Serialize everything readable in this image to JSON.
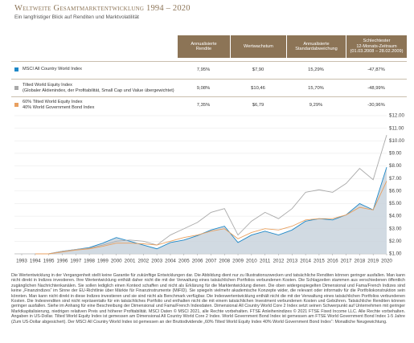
{
  "header": {
    "title": "Weltweite Gesamtmarktentwicklung 1994 – 2020",
    "subtitle": "Ein langfristiger Blick auf Renditen und Marktvolatilität"
  },
  "table": {
    "columns": [
      [
        "Annualisierte",
        "Rendite"
      ],
      [
        "Wertwachstum"
      ],
      [
        "Annualisierte",
        "Standardabweichung"
      ],
      [
        "Schlechtester",
        "12-Monats-Zeitraum",
        "(01.03.2008 – 28.02.2009)"
      ]
    ],
    "rows": [
      {
        "label": [
          "MSCI All Country World Index"
        ],
        "cells": [
          "7,95%",
          "$7,90",
          "15,29%",
          "-47,87%"
        ]
      },
      {
        "label": [
          "Tilted World Equity Index",
          "(Globaler Aktienindex, der Profitabilität, Small Cap und Value übergewichtet)"
        ],
        "cells": [
          "9,08%",
          "$10,46",
          "15,70%",
          "-48,99%"
        ]
      },
      {
        "label": [
          "60% Tilted World Equity Index",
          "40% World Government Bond Index"
        ],
        "cells": [
          "7,35%",
          "$6,79",
          "9,29%",
          "-30,96%"
        ]
      }
    ]
  },
  "chart_data": {
    "type": "line",
    "x": [
      1994,
      1995,
      1996,
      1997,
      1998,
      1999,
      2000,
      2001,
      2002,
      2003,
      2004,
      2005,
      2006,
      2007,
      2008,
      2009,
      2010,
      2011,
      2012,
      2013,
      2014,
      2015,
      2016,
      2017,
      2018,
      2019,
      2020
    ],
    "series": [
      {
        "color": "#1e88c8",
        "area_color": "#c9d4dd",
        "values": [
          1.0,
          1.0,
          1.2,
          1.35,
          1.5,
          1.85,
          2.3,
          2.0,
          1.7,
          1.4,
          1.9,
          2.1,
          2.45,
          2.9,
          3.2,
          1.9,
          2.5,
          2.8,
          2.5,
          2.9,
          3.6,
          3.8,
          3.7,
          4.1,
          5.0,
          4.5,
          7.9
        ]
      },
      {
        "color": "#a9a9a9",
        "values": [
          1.0,
          1.0,
          1.2,
          1.35,
          1.45,
          1.7,
          2.0,
          2.1,
          2.0,
          1.7,
          2.5,
          3.0,
          3.5,
          4.3,
          4.6,
          2.5,
          3.6,
          4.3,
          3.8,
          4.6,
          5.9,
          6.1,
          5.9,
          6.6,
          7.8,
          6.9,
          10.46
        ]
      },
      {
        "color": "#e8a060",
        "values": [
          1.0,
          1.0,
          1.15,
          1.3,
          1.4,
          1.6,
          1.85,
          1.85,
          1.8,
          1.7,
          2.0,
          2.3,
          2.5,
          2.8,
          3.0,
          2.2,
          2.7,
          3.0,
          2.9,
          3.2,
          3.7,
          3.8,
          3.8,
          4.1,
          4.7,
          4.5,
          6.79
        ]
      }
    ],
    "xlim": [
      1993,
      2020
    ],
    "xticks": [
      1993,
      1994,
      1995,
      1996,
      1997,
      1998,
      1999,
      2000,
      2001,
      2002,
      2003,
      2004,
      2005,
      2006,
      2007,
      2008,
      2009,
      2010,
      2011,
      2012,
      2013,
      2014,
      2015,
      2016,
      2017,
      2018,
      2019,
      2020
    ],
    "ylim": [
      1,
      12
    ],
    "yticks": [
      {
        "value": 1,
        "label": "$1.00"
      },
      {
        "value": 2,
        "label": "$2.00"
      },
      {
        "value": 3,
        "label": "$3.00"
      },
      {
        "value": 4,
        "label": "$4.00"
      },
      {
        "value": 5,
        "label": "$5.00"
      },
      {
        "value": 6,
        "label": "$6.00"
      },
      {
        "value": 7,
        "label": "$7.00"
      },
      {
        "value": 8,
        "label": "$8.00"
      },
      {
        "value": 9,
        "label": "$9.00"
      },
      {
        "value": 10,
        "label": "$10.00"
      },
      {
        "value": 11,
        "label": "$11.00"
      },
      {
        "value": 12,
        "label": "$12.00"
      }
    ],
    "grid": true
  },
  "footnote": "Die Wertentwicklung in der Vergangenheit stellt keine Garantie für zukünftige Entwicklungen dar. Die Abbildung dient nur zu Illustrationszwecken und tatsächliche Renditen können geringer ausfallen. Man kann nicht direkt in Indizes investieren. Ihre Wertentwicklung enthält daher nicht die mit der Verwaltung eines tatsächlichen Portfolios verbundenen Kosten. Die Schlagzeilen stammen aus verschiedenen öffentlich zugänglichen Nachrichtenkanälen. Sie sollen lediglich einen Kontext schaffen und nicht als Erklärung für die Marktentwicklung dienen. Die oben widergespiegelten Dimensional und Fama/French Indizes sind keine „Finanzindizes“ im Sinne der EU-Richtlinie über Märkte für Finanzinstrumente (MiFID). Sie spiegeln vielmehr akademische Konzepte wider, die relevant oder informativ für die Portfoliokonstruktion sein könnten. Man kann nicht direkt in diese Indizes investieren und sie sind nicht als Benchmark verfügbar. Die Indexwertentwicklung enthält nicht die mit der Verwaltung eines tatsächlichen Portfolios verbundenen Kosten. Die Indexrenditen sind nicht repräsentativ für ein tatsächliches Portfolio und enthalten nicht die mit einem tatsächlichen Investment verbundenen Kosten und Gebühren. Tatsächliche Renditen können geringer ausfallen. Siehe im Anhang für eine Beschreibung der Dimensional und Fama/French Indexdaten. Dimensional All Country World Core 2 Index setzt seinen Schwerpunkt auf Unternehmen mit geringer Marktkapitalisierung, niedrigen relativen Preis und höherer Profitabilität. MSCI Daten © MSCI 2021, alle Rechte vorbehalten. FTSE Anleihenindizes © 2021 FTSE Fixed Income LLC. Alle Rechte vorbehalten. Angaben in US-Dollar. Tilted World Equity Index ist gemessen am Dimensional All Country World Core 2 Index. World Government Bond Index ist gemessen am FTSE World Government Bond Index 1-5 Jahre (Zum US-Dollar abgesichert). Der MSCI All Country World Index ist gemessen an der Bruttodividende „60% Tilted World Equity Index 40% World Government Bond Index“: Monatliche Neugewichtung."
}
